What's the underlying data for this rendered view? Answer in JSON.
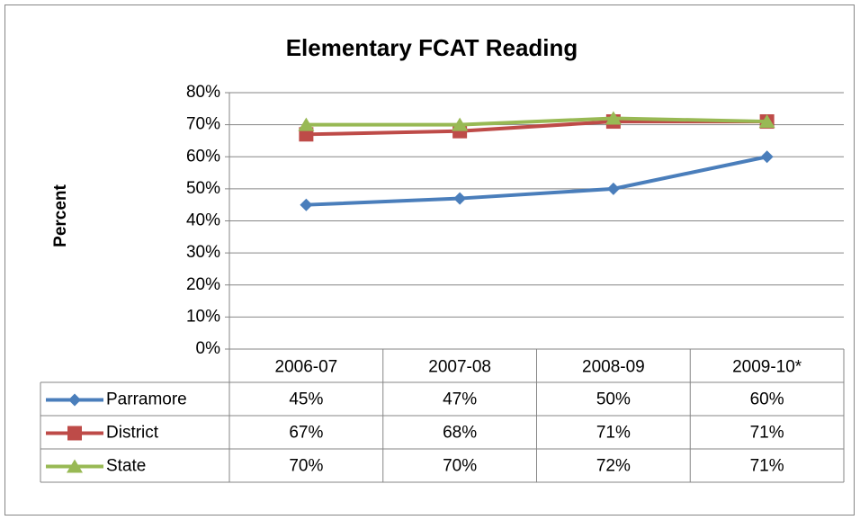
{
  "chart_data": {
    "type": "line",
    "title": "Elementary FCAT Reading",
    "y_label": "Percent",
    "categories": [
      "2006-07",
      "2007-08",
      "2008-09",
      "2009-10*"
    ],
    "series": [
      {
        "name": "Parramore",
        "color": "#4a7ebb",
        "marker": "diamond",
        "values": [
          45,
          47,
          50,
          60
        ],
        "value_labels": [
          "45%",
          "47%",
          "50%",
          "60%"
        ]
      },
      {
        "name": "District",
        "color": "#be4b48",
        "marker": "square",
        "values": [
          67,
          68,
          71,
          71
        ],
        "value_labels": [
          "67%",
          "68%",
          "71%",
          "71%"
        ]
      },
      {
        "name": "State",
        "color": "#98b954",
        "marker": "triangle",
        "values": [
          70,
          70,
          72,
          71
        ],
        "value_labels": [
          "70%",
          "70%",
          "72%",
          "71%"
        ]
      }
    ],
    "ylim": [
      0,
      80
    ],
    "yticks": [
      {
        "value": 0,
        "label": "0%"
      },
      {
        "value": 10,
        "label": "10%"
      },
      {
        "value": 20,
        "label": "20%"
      },
      {
        "value": 30,
        "label": "30%"
      },
      {
        "value": 40,
        "label": "40%"
      },
      {
        "value": 50,
        "label": "50%"
      },
      {
        "value": 60,
        "label": "60%"
      },
      {
        "value": 70,
        "label": "70%"
      },
      {
        "value": 80,
        "label": "80%"
      }
    ],
    "grid": true
  }
}
